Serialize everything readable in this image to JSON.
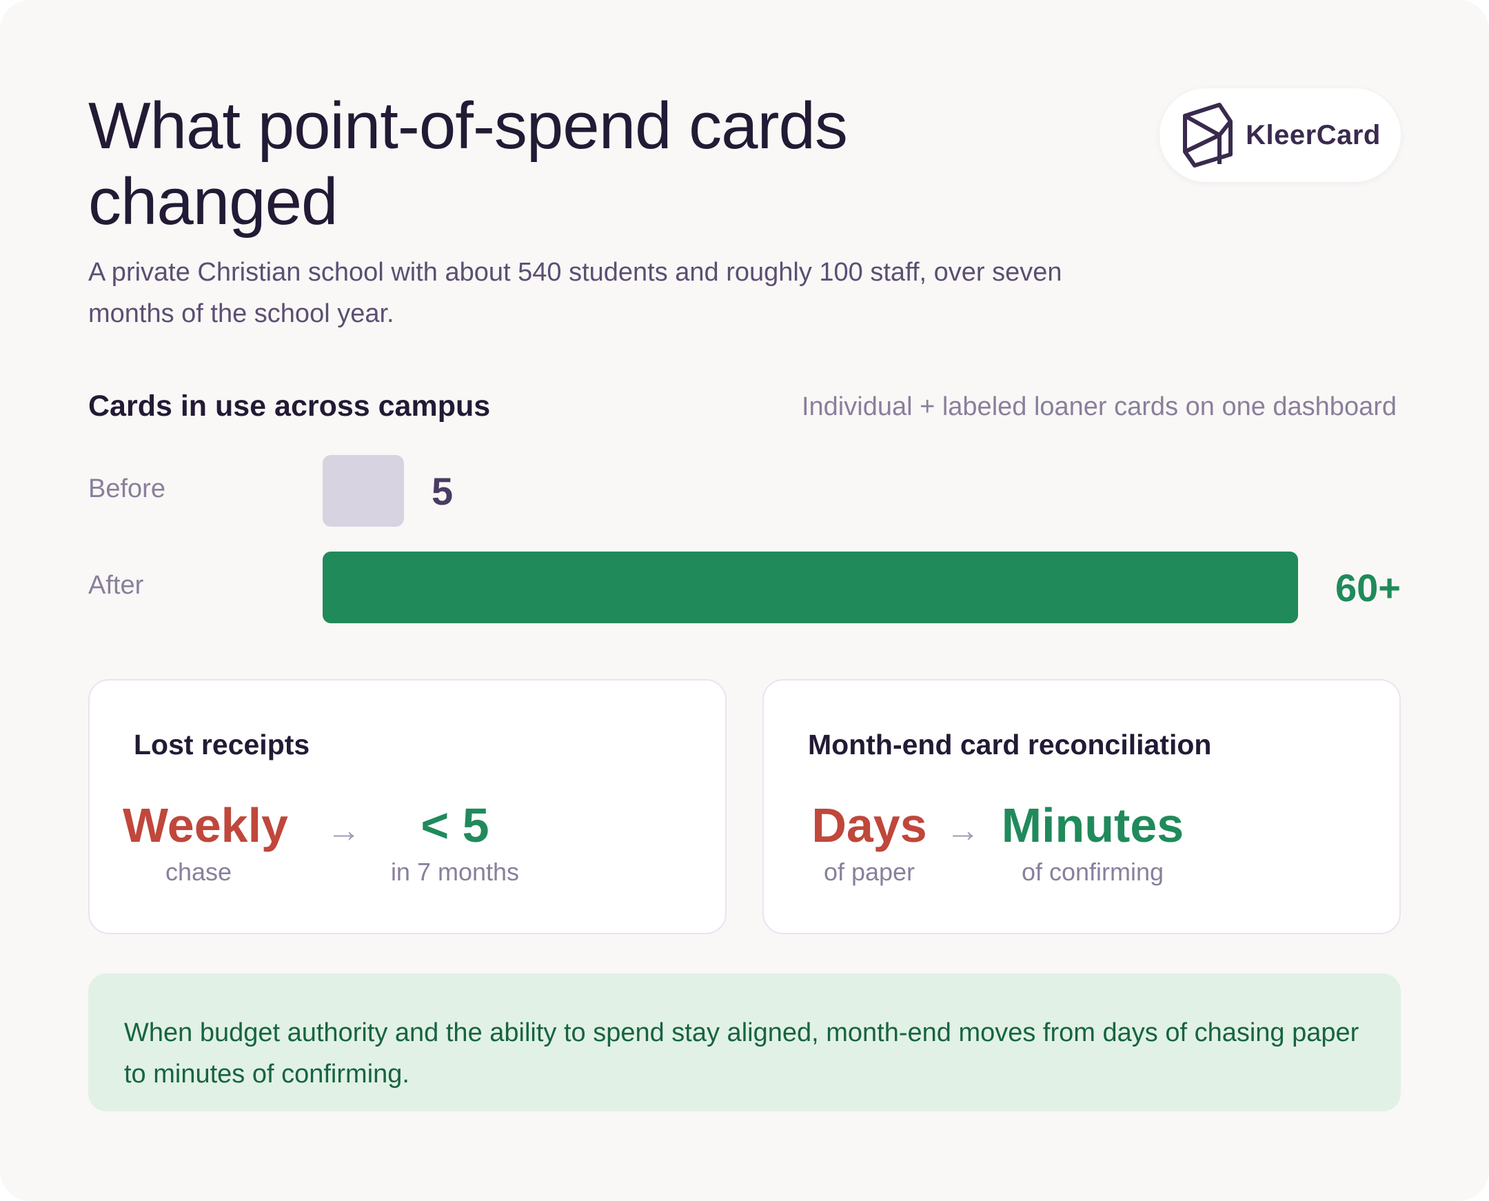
{
  "header": {
    "title": "What point-of-spend cards changed",
    "subtitle": "A private Christian school with about 540 students and roughly 100 staff, over seven months of the school year.",
    "logo_text": "KleerCard"
  },
  "chart_data": {
    "type": "bar",
    "title": "Cards in use across campus",
    "subtitle": "Individual + labeled loaner cards on one dashboard",
    "categories": [
      "Before",
      "After"
    ],
    "values": [
      5,
      60
    ],
    "value_labels": [
      "5",
      "60+"
    ],
    "orientation": "horizontal",
    "xlabel": "",
    "ylabel": "",
    "colors": [
      "#d8d3e0",
      "#208a5b"
    ]
  },
  "panels": [
    {
      "title": "Lost receipts",
      "before": {
        "value": "Weekly",
        "caption": "chase"
      },
      "after": {
        "value": "< 5",
        "caption": "in 7 months"
      }
    },
    {
      "title": "Month-end card reconciliation",
      "before": {
        "value": "Days",
        "caption": "of paper"
      },
      "after": {
        "value": "Minutes",
        "caption": "of confirming"
      }
    }
  ],
  "arrow_glyph": "→",
  "callout": {
    "text": "When budget authority and the ability to spend stay aligned, month-end moves from days of chasing paper to minutes of confirming."
  },
  "colors": {
    "before_accent": "#c0473b",
    "after_accent": "#208a5b",
    "callout_bg": "#e1f1e6"
  },
  "icons": {
    "logo": "kleercard-logo-icon",
    "arrow": "arrow-right-icon"
  }
}
